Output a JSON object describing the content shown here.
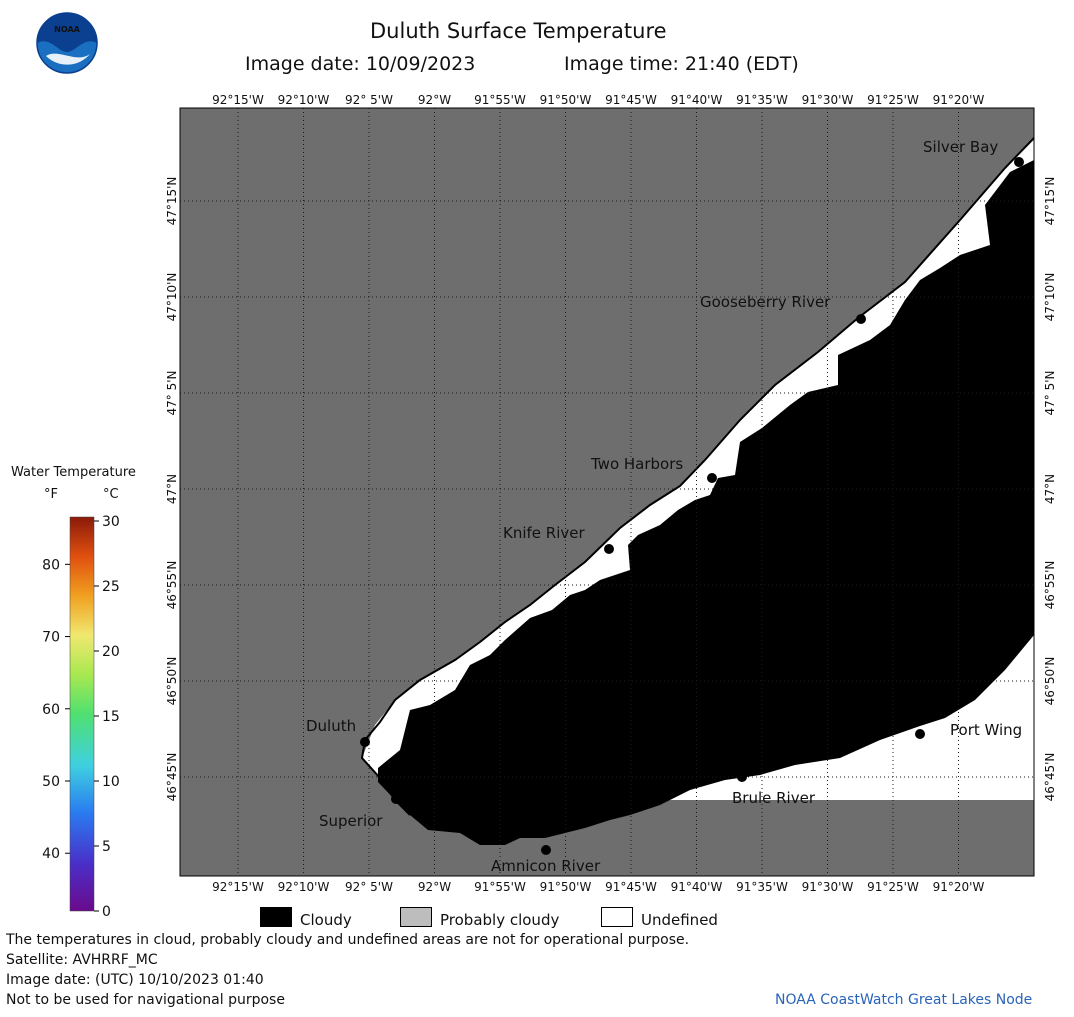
{
  "header": {
    "title": "Duluth Surface Temperature",
    "image_date": "Image date: 10/09/2023",
    "image_time": "Image time: 21:40 (EDT)"
  },
  "map": {
    "longitudes": [
      "92°15'W",
      "92°10'W",
      "92° 5'W",
      "92°W",
      "91°55'W",
      "91°50'W",
      "91°45'W",
      "91°40'W",
      "91°35'W",
      "91°30'W",
      "91°25'W",
      "91°20'W"
    ],
    "latitudes": [
      "47°15'N",
      "47°10'N",
      "47° 5'N",
      "47°N",
      "46°55'N",
      "46°50'N",
      "46°45'N"
    ],
    "places": [
      {
        "name": "Silver Bay"
      },
      {
        "name": "Gooseberry River"
      },
      {
        "name": "Two Harbors"
      },
      {
        "name": "Knife River"
      },
      {
        "name": "Duluth"
      },
      {
        "name": "Superior"
      },
      {
        "name": "Amnicon River"
      },
      {
        "name": "Brule River"
      },
      {
        "name": "Port Wing"
      }
    ],
    "colors": {
      "land": "#6e6e6e",
      "cloudy": "#000000",
      "undefined": "#ffffff",
      "grid": "#222222"
    }
  },
  "colorbar": {
    "title": "Water Temperature",
    "f_label": "°F",
    "c_label": "°C",
    "f_ticks": [
      "80",
      "70",
      "60",
      "50",
      "40"
    ],
    "f_values": [
      80,
      70,
      60,
      50,
      40
    ],
    "c_ticks": [
      "30",
      "25",
      "20",
      "15",
      "10",
      "5",
      "0"
    ],
    "c_values": [
      30,
      25,
      20,
      15,
      10,
      5,
      0
    ]
  },
  "legend": {
    "cloudy": "Cloudy",
    "probably_cloudy": "Probably cloudy",
    "undefined": "Undefined"
  },
  "footer": {
    "note": "The temperatures in cloud, probably cloudy and undefined areas are not for operational purpose.",
    "satellite": "Satellite: AVHRRF_MC",
    "utc_date": "Image date: (UTC) 10/10/2023  01:40",
    "nav": "Not to be used for navigational purpose",
    "credit": "NOAA CoastWatch Great Lakes Node"
  }
}
